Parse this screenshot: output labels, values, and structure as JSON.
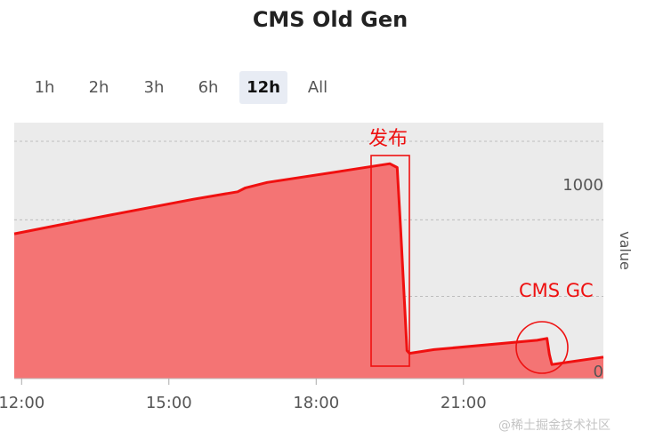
{
  "title": "CMS Old Gen",
  "ranges": [
    "1h",
    "2h",
    "3h",
    "6h",
    "12h",
    "All"
  ],
  "active_range": "12h",
  "colors": {
    "series": "#f01010",
    "fill": "#f47474",
    "plot_bg": "#ebebeb",
    "annotation": "#ee1111"
  },
  "annotations": {
    "release": "发布",
    "cms_gc": "CMS GC"
  },
  "watermark": "@稀土掘金技术社区",
  "chart_data": {
    "type": "area",
    "title": "CMS Old Gen",
    "xlabel": "",
    "ylabel": "value",
    "x_unit": "hour",
    "xlim": [
      11.85,
      23.85
    ],
    "ylim": [
      0,
      1370
    ],
    "x_ticks": [
      12,
      15,
      18,
      21
    ],
    "x_tick_labels": [
      "12:00",
      "15:00",
      "18:00",
      "21:00"
    ],
    "y_ticks": [
      0,
      1000
    ],
    "y_tick_labels": [
      "0",
      "1000"
    ],
    "y_gridlines": [
      0,
      440,
      850,
      1270
    ],
    "grid": true,
    "legend": "none",
    "series": [
      {
        "x": [
          11.85,
          13.5,
          15.5,
          16.4,
          16.55,
          17.0,
          18.5,
          19.5,
          19.65,
          19.72,
          19.85,
          19.9,
          20.4,
          22.5,
          22.7,
          22.75,
          22.8,
          23.85
        ],
        "y": [
          775,
          860,
          960,
          1000,
          1020,
          1050,
          1110,
          1150,
          1130,
          800,
          150,
          135,
          155,
          205,
          215,
          130,
          75,
          115
        ]
      }
    ]
  }
}
